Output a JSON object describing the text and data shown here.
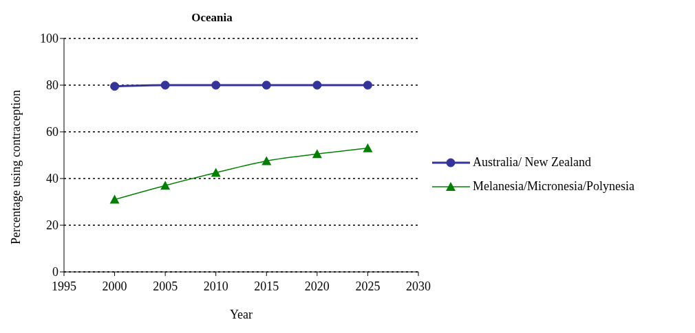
{
  "chart_data": {
    "type": "line",
    "title": "Oceania",
    "xlabel": "Year",
    "ylabel": "Percentage using contraception",
    "x": [
      2000,
      2005,
      2010,
      2015,
      2020,
      2025
    ],
    "series": [
      {
        "name": "Australia/ New Zealand",
        "color": "#333399",
        "marker": "circle",
        "values": [
          79.5,
          80,
          80,
          80,
          80,
          80
        ]
      },
      {
        "name": "Melanesia/Micronesia/Polynesia",
        "color": "#008000",
        "marker": "triangle",
        "values": [
          31,
          37,
          42.5,
          47.5,
          50.5,
          53
        ]
      }
    ],
    "xlim": [
      1995,
      2030
    ],
    "xticks": [
      1995,
      2000,
      2005,
      2010,
      2015,
      2020,
      2025,
      2030
    ],
    "ylim": [
      0,
      100
    ],
    "yticks": [
      0,
      20,
      40,
      60,
      80,
      100
    ],
    "grid": "y",
    "legend": "right",
    "line_style": "solid"
  }
}
